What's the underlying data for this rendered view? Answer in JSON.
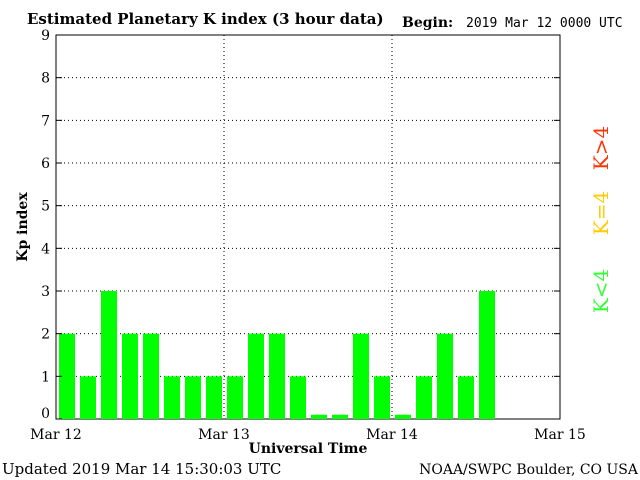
{
  "chart_data": {
    "type": "bar",
    "title": "Estimated Planetary K index (3 hour data)",
    "begin_label": "Begin:",
    "begin_value": "2019 Mar 12 0000 UTC",
    "xlabel": "Universal Time",
    "ylabel": "Kp index",
    "x_ticks": [
      "Mar 12",
      "Mar 13",
      "Mar 14",
      "Mar 15"
    ],
    "y_ticks": [
      "0",
      "1",
      "2",
      "3",
      "4",
      "5",
      "6",
      "7",
      "8",
      "9"
    ],
    "ylim": [
      0,
      9
    ],
    "slots_total": 24,
    "values": [
      2,
      1,
      3,
      2,
      2,
      1,
      1,
      1,
      1,
      2,
      2,
      1,
      0.1,
      0.1,
      2,
      1,
      0.1,
      1,
      2,
      1,
      3
    ],
    "grid": true,
    "legend": [
      {
        "label": "K>4",
        "color": "#ff3300"
      },
      {
        "label": "K=4",
        "color": "#ffcc00"
      },
      {
        "label": "K<4",
        "color": "#33ff33"
      }
    ],
    "bar_color": "#00ff00"
  },
  "footer": {
    "updated": "Updated 2019 Mar 14 15:30:03 UTC",
    "source": "NOAA/SWPC Boulder, CO USA"
  }
}
